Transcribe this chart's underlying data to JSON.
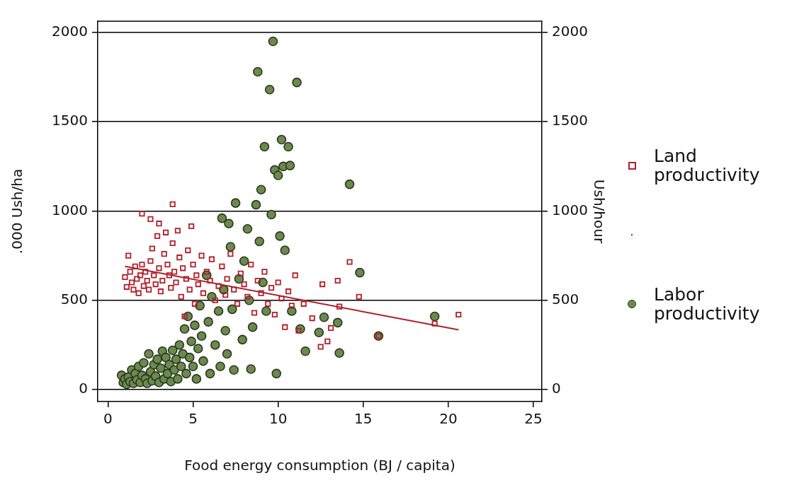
{
  "chart_data": {
    "type": "scatter",
    "xlabel": "Food energy consumption (BJ / capita)",
    "ylabel": ".000 Ush/ha",
    "y2label": "Ush/hour",
    "xlim": [
      -0.6,
      25.5
    ],
    "xticks": [
      0,
      5,
      10,
      15,
      20,
      25
    ],
    "ylim": [
      -67,
      2063
    ],
    "yticks": [
      0,
      500,
      1000,
      1500,
      2000
    ],
    "y2lim": [
      -67,
      2063
    ],
    "y2ticks": [
      0,
      500,
      1000,
      1500,
      2000
    ],
    "grid": "y",
    "legend": "right",
    "series": [
      {
        "name": "Land productivity",
        "type": "scatter",
        "marker": "square",
        "color": "#b0202a",
        "x": [
          1.0,
          1.1,
          1.2,
          1.3,
          1.4,
          1.5,
          1.6,
          1.7,
          1.8,
          1.9,
          2.0,
          2.0,
          2.1,
          2.2,
          2.3,
          2.4,
          2.5,
          2.5,
          2.6,
          2.7,
          2.8,
          2.9,
          3.0,
          3.0,
          3.1,
          3.2,
          3.3,
          3.4,
          3.5,
          3.6,
          3.7,
          3.8,
          3.8,
          3.9,
          4.0,
          4.1,
          4.2,
          4.3,
          4.4,
          4.5,
          4.6,
          4.7,
          4.8,
          4.9,
          5.0,
          5.1,
          5.2,
          5.3,
          5.5,
          5.6,
          5.8,
          6.0,
          6.1,
          6.3,
          6.5,
          6.7,
          6.9,
          7.0,
          7.2,
          7.4,
          7.6,
          7.8,
          8.0,
          8.2,
          8.4,
          8.6,
          8.8,
          9.0,
          9.2,
          9.4,
          9.6,
          9.8,
          10.0,
          10.2,
          10.4,
          10.6,
          10.8,
          11.0,
          11.2,
          11.5,
          12.0,
          12.5,
          12.6,
          12.9,
          13.1,
          13.5,
          13.6,
          14.2,
          14.75,
          15.9,
          19.2,
          20.6
        ],
        "values": [
          630,
          575,
          750,
          660,
          600,
          560,
          690,
          620,
          540,
          640,
          985,
          700,
          580,
          660,
          610,
          560,
          955,
          720,
          790,
          640,
          590,
          860,
          930,
          680,
          550,
          610,
          760,
          880,
          700,
          640,
          570,
          1038,
          820,
          660,
          600,
          890,
          740,
          520,
          680,
          410,
          620,
          780,
          560,
          915,
          700,
          480,
          640,
          590,
          750,
          540,
          660,
          610,
          730,
          500,
          580,
          690,
          530,
          620,
          760,
          560,
          480,
          650,
          590,
          520,
          700,
          430,
          610,
          540,
          660,
          480,
          570,
          420,
          600,
          510,
          350,
          550,
          470,
          640,
          330,
          480,
          400,
          240,
          590,
          270,
          345,
          610,
          465,
          715,
          520,
          300,
          370,
          420
        ]
      },
      {
        "type": "line",
        "color": "#b0202a",
        "marker": "none",
        "line_style": "solid",
        "x": [
          1.0,
          20.6
        ],
        "values": [
          690,
          335
        ]
      },
      {
        "name": "Labor productivity",
        "type": "scatter",
        "marker": "circle",
        "color": "#6b8a4e",
        "x": [
          0.8,
          0.9,
          1.0,
          1.1,
          1.2,
          1.3,
          1.4,
          1.5,
          1.6,
          1.7,
          1.8,
          1.9,
          2.0,
          2.1,
          2.2,
          2.3,
          2.4,
          2.5,
          2.6,
          2.7,
          2.8,
          2.9,
          3.0,
          3.1,
          3.2,
          3.3,
          3.4,
          3.5,
          3.6,
          3.7,
          3.8,
          3.9,
          4.0,
          4.1,
          4.2,
          4.3,
          4.4,
          4.5,
          4.6,
          4.7,
          4.8,
          4.9,
          5.0,
          5.1,
          5.2,
          5.3,
          5.4,
          5.5,
          5.6,
          5.8,
          5.9,
          6.0,
          6.1,
          6.3,
          6.5,
          6.6,
          6.7,
          6.8,
          6.9,
          7.0,
          7.1,
          7.2,
          7.3,
          7.4,
          7.5,
          7.7,
          7.9,
          8.0,
          8.2,
          8.3,
          8.4,
          8.5,
          8.7,
          8.8,
          8.9,
          9.0,
          9.1,
          9.2,
          9.3,
          9.5,
          9.6,
          9.7,
          9.8,
          9.9,
          10.0,
          10.1,
          10.2,
          10.3,
          10.4,
          10.6,
          10.7,
          10.8,
          11.1,
          11.3,
          11.6,
          12.4,
          12.7,
          13.5,
          13.6,
          14.2,
          14.8,
          15.9,
          19.2
        ],
        "values": [
          80,
          40,
          60,
          30,
          70,
          45,
          110,
          35,
          90,
          55,
          130,
          40,
          80,
          150,
          60,
          35,
          200,
          100,
          50,
          140,
          75,
          170,
          40,
          120,
          215,
          60,
          180,
          90,
          140,
          45,
          220,
          110,
          170,
          60,
          250,
          130,
          200,
          340,
          90,
          410,
          180,
          270,
          130,
          360,
          60,
          230,
          470,
          300,
          160,
          640,
          380,
          90,
          520,
          250,
          440,
          130,
          960,
          560,
          330,
          200,
          930,
          800,
          450,
          110,
          1045,
          620,
          280,
          720,
          900,
          500,
          115,
          350,
          1035,
          1780,
          830,
          1120,
          600,
          1360,
          440,
          1680,
          980,
          1950,
          1230,
          90,
          1200,
          860,
          1400,
          1250,
          780,
          1360,
          1255,
          440,
          1720,
          340,
          215,
          320,
          405,
          375,
          205,
          1150,
          655,
          300,
          410
        ]
      }
    ]
  }
}
